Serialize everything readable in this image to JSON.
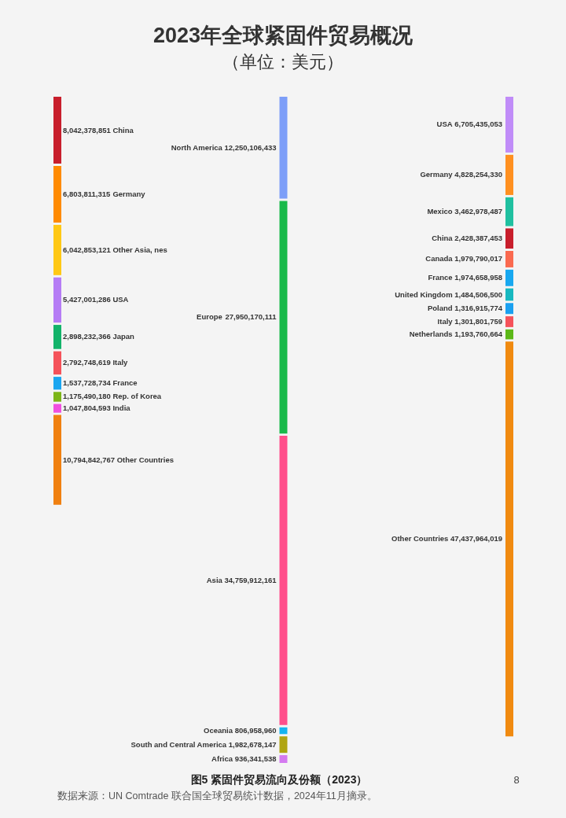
{
  "chart_data": {
    "type": "other",
    "title": "2023年全球紧固件贸易概况",
    "subtitle": "（单位：美元）",
    "annotations": [
      "图5 紧固件贸易流向及份额（2023）",
      "数据来源：UN Comtrade 联合国全球贸易统计数据，2024年11月摘录。",
      "8"
    ],
    "categories": [
      "China",
      "Germany",
      "Other Asia, nes",
      "USA",
      "Japan",
      "Italy",
      "France",
      "Rep. of Korea",
      "India",
      "Other Countries",
      "North America",
      "Europe",
      "Asia",
      "Oceania",
      "South and Central America",
      "Africa",
      "USA",
      "Germany",
      "Mexico",
      "China",
      "Canada",
      "France",
      "United Kingdom",
      "Poland",
      "Italy",
      "Netherlands",
      "Other Countries"
    ],
    "colors": [
      "#c81e2c",
      "#ff8a00",
      "#ffc814",
      "#b57cf5",
      "#12b36a",
      "#f5525a",
      "#1aa6f0",
      "#7cb518",
      "#f050e0",
      "#f08010",
      "#7d9ef8",
      "#19b94a",
      "#ff4f8b",
      "#16b4f0",
      "#b0a512",
      "#d47af0",
      "#c08cf8",
      "#ff9020",
      "#20c0a0",
      "#c81e2c",
      "#fa6a50",
      "#18a8f0",
      "#18b8c0",
      "#1aa0f0",
      "#f5525a",
      "#5cb818",
      "#f08a10"
    ],
    "series": [
      {
        "values": [
          8042378851,
          6803811315,
          6042853121,
          5427001286,
          2898232366,
          2792748619,
          1537728734,
          1175490180,
          1047804593,
          10794842767,
          null,
          null,
          null,
          null,
          null,
          null,
          null,
          null,
          null,
          null,
          null,
          null,
          null,
          null,
          null,
          null,
          null
        ],
        "value_labels": [
          "8,042,378,851",
          "6,803,811,315",
          "6,042,853,121",
          "5,427,001,286",
          "2,898,232,366",
          "2,792,748,619",
          "1,537,728,734",
          "1,175,490,180",
          "1,047,804,593",
          "10,794,842,767",
          null,
          null,
          null,
          null,
          null,
          null,
          null,
          null,
          null,
          null,
          null,
          null,
          null,
          null,
          null,
          null,
          null
        ]
      },
      {
        "values": [
          null,
          null,
          null,
          null,
          null,
          null,
          null,
          null,
          null,
          null,
          12250106433,
          27950170111,
          34759912161,
          806958960,
          1982678147,
          936341538,
          null,
          null,
          null,
          null,
          null,
          null,
          null,
          null,
          null,
          null,
          null
        ],
        "value_labels": [
          null,
          null,
          null,
          null,
          null,
          null,
          null,
          null,
          null,
          null,
          "12,250,106,433",
          "27,950,170,111",
          "34,759,912,161",
          "806,958,960",
          "1,982,678,147",
          "936,341,538",
          null,
          null,
          null,
          null,
          null,
          null,
          null,
          null,
          null,
          null,
          null
        ]
      },
      {
        "values": [
          null,
          null,
          null,
          null,
          null,
          null,
          null,
          null,
          null,
          null,
          null,
          null,
          null,
          null,
          null,
          null,
          6705435053,
          4828254330,
          3462978487,
          2428387453,
          1979790017,
          1974658958,
          1484506500,
          1316915774,
          1301801759,
          1193760664,
          47437964019
        ],
        "value_labels": [
          null,
          null,
          null,
          null,
          null,
          null,
          null,
          null,
          null,
          null,
          null,
          null,
          null,
          null,
          null,
          null,
          "6,705,435,053",
          "4,828,254,330",
          "3,462,978,487",
          "2,428,387,453",
          "1,979,790,017",
          "1,974,658,958",
          "1,484,506,500",
          "1,316,915,774",
          "1,301,801,759",
          "1,193,760,664",
          "47,437,964,019"
        ]
      }
    ]
  }
}
